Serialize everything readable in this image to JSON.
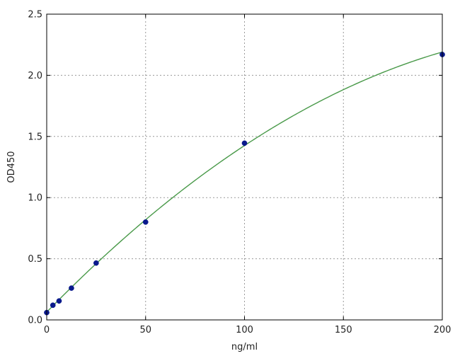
{
  "chart_data": {
    "type": "scatter",
    "title": "",
    "xlabel": "ng/ml",
    "ylabel": "OD450",
    "xlim": [
      0,
      200
    ],
    "ylim": [
      0,
      2.5
    ],
    "x_ticks": [
      0,
      50,
      100,
      150,
      200
    ],
    "x_tick_labels": [
      "0",
      "50",
      "100",
      "150",
      "200"
    ],
    "y_ticks": [
      0,
      0.5,
      1.0,
      1.5,
      2.0,
      2.5
    ],
    "y_tick_labels": [
      "0.0",
      "0.5",
      "1.0",
      "1.5",
      "2.0",
      "2.5"
    ],
    "grid": true,
    "legend": "none",
    "points": {
      "x": [
        0,
        3.125,
        6.25,
        12.5,
        25,
        50,
        100,
        200
      ],
      "y": [
        0.06,
        0.12,
        0.155,
        0.26,
        0.465,
        0.8,
        1.445,
        2.17
      ],
      "color": "#0a1a8c"
    },
    "fit_curve": {
      "type": "polynomial",
      "coefficients": [
        0.0635,
        0.016605,
        -2.985e-05
      ],
      "color": "#4a9a4a"
    }
  }
}
